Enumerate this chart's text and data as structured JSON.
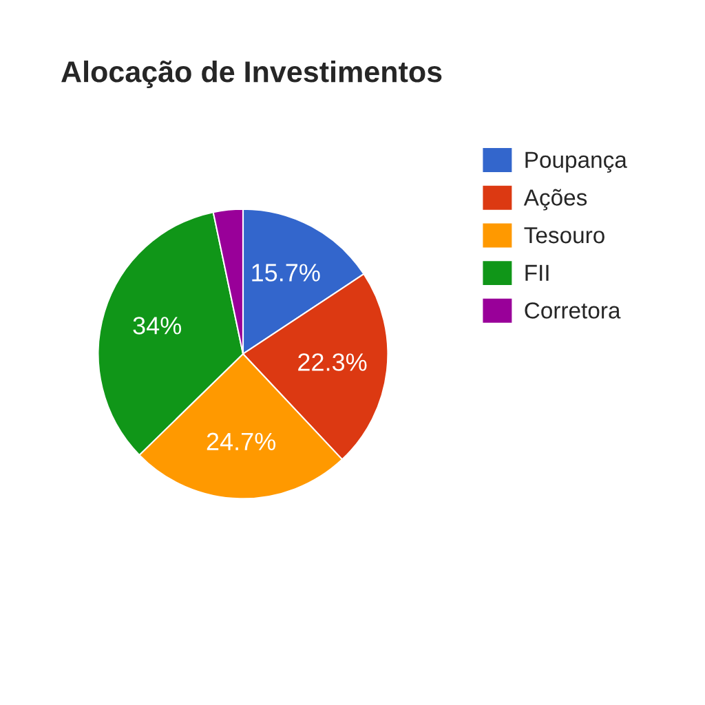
{
  "chart_data": {
    "type": "pie",
    "title": "Alocação de Investimentos",
    "categories": [
      "Poupança",
      "Ações",
      "Tesouro",
      "FII",
      "Corretora"
    ],
    "values": [
      15.7,
      22.3,
      24.7,
      34,
      3.3
    ],
    "colors": [
      "#3366cc",
      "#dc3912",
      "#ff9900",
      "#109618",
      "#990099"
    ],
    "value_labels": [
      "15.7%",
      "22.3%",
      "24.7%",
      "34%",
      null
    ],
    "legend": "right"
  }
}
